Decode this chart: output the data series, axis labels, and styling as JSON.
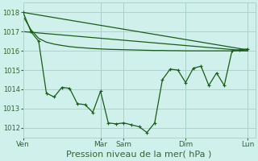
{
  "bg_color": "#cff0eb",
  "grid_color": "#aad4cc",
  "line_color": "#1a5c1a",
  "xlabel": "Pression niveau de la mer( hPa )",
  "xlabel_fontsize": 8,
  "ylim": [
    1011.5,
    1018.5
  ],
  "yticks": [
    1012,
    1013,
    1014,
    1015,
    1016,
    1017,
    1018
  ],
  "ytick_fontsize": 6,
  "xtick_fontsize": 6.5,
  "day_labels": [
    "Ven",
    "Mar",
    "Sam",
    "Dim",
    "Lun"
  ],
  "day_positions": [
    0,
    10,
    13,
    21,
    29
  ],
  "xlim": [
    0,
    30
  ],
  "series1_x": [
    0,
    29
  ],
  "series1_y": [
    1018.0,
    1016.05
  ],
  "series2_x": [
    0,
    29
  ],
  "series2_y": [
    1017.0,
    1016.0
  ],
  "series3_x": [
    0,
    1,
    2,
    3,
    4,
    5,
    6,
    7,
    8,
    9,
    10,
    11,
    12,
    13,
    14,
    15,
    16,
    17,
    18,
    19,
    20,
    21,
    22,
    23,
    24,
    25,
    26,
    27,
    28,
    29
  ],
  "series3_y": [
    1018.0,
    1017.0,
    1016.5,
    1013.8,
    1013.6,
    1014.1,
    1014.05,
    1013.25,
    1013.2,
    1012.8,
    1013.9,
    1012.25,
    1012.2,
    1012.25,
    1012.15,
    1012.05,
    1011.75,
    1012.25,
    1014.5,
    1015.05,
    1015.0,
    1014.35,
    1015.1,
    1015.2,
    1014.2,
    1014.85,
    1014.2,
    1016.0,
    1016.05,
    1016.1
  ],
  "series4_x": [
    0,
    1,
    2,
    3,
    4,
    5,
    6,
    7,
    8,
    9,
    10,
    11,
    12,
    13,
    14,
    15,
    16,
    17,
    18,
    19,
    20,
    21,
    22,
    23,
    24,
    25,
    26,
    27,
    28,
    29
  ],
  "series4_y": [
    1017.8,
    1017.1,
    1016.65,
    1016.45,
    1016.35,
    1016.28,
    1016.22,
    1016.18,
    1016.15,
    1016.12,
    1016.1,
    1016.08,
    1016.07,
    1016.06,
    1016.05,
    1016.04,
    1016.03,
    1016.02,
    1016.02,
    1016.01,
    1016.01,
    1016.0,
    1016.0,
    1016.0,
    1016.0,
    1016.0,
    1016.0,
    1016.0,
    1016.0,
    1016.0
  ]
}
